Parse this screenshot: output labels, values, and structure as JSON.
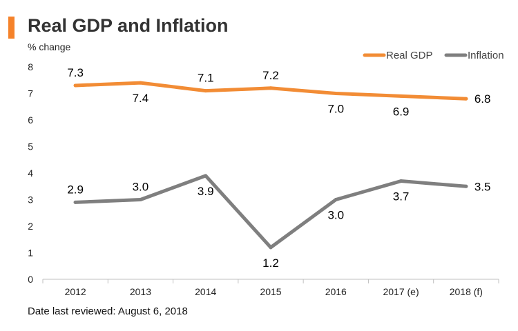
{
  "colors": {
    "accent": "#f5822a",
    "gdp": "#f28c35",
    "inflation": "#7f7f7f",
    "axis": "#bfbfbf"
  },
  "footer": "Date last reviewed: August 6, 2018",
  "chart_data": {
    "type": "line",
    "title": "Real GDP and Inflation",
    "ylabel": "% change",
    "xlabel": "",
    "categories": [
      "2012",
      "2013",
      "2014",
      "2015",
      "2016",
      "2017 (e)",
      "2018 (f)"
    ],
    "ylim": [
      0,
      8
    ],
    "yticks": [
      0,
      1,
      2,
      3,
      4,
      5,
      6,
      7,
      8
    ],
    "legend_position": "top-right",
    "series": [
      {
        "name": "Real GDP",
        "values": [
          7.3,
          7.4,
          7.1,
          7.2,
          7.0,
          6.9,
          6.8
        ],
        "labels": [
          "7.3",
          "7.4",
          "7.1",
          "7.2",
          "7.0",
          "6.9",
          "6.8"
        ],
        "label_side": [
          "above",
          "below",
          "above",
          "above",
          "below",
          "below",
          "right"
        ]
      },
      {
        "name": "Inflation",
        "values": [
          2.9,
          3.0,
          3.9,
          1.2,
          3.0,
          3.7,
          3.5
        ],
        "labels": [
          "2.9",
          "3.0",
          "3.9",
          "1.2",
          "3.0",
          "3.7",
          "3.5"
        ],
        "label_side": [
          "above",
          "above",
          "below",
          "below",
          "below",
          "below",
          "right"
        ]
      }
    ]
  }
}
